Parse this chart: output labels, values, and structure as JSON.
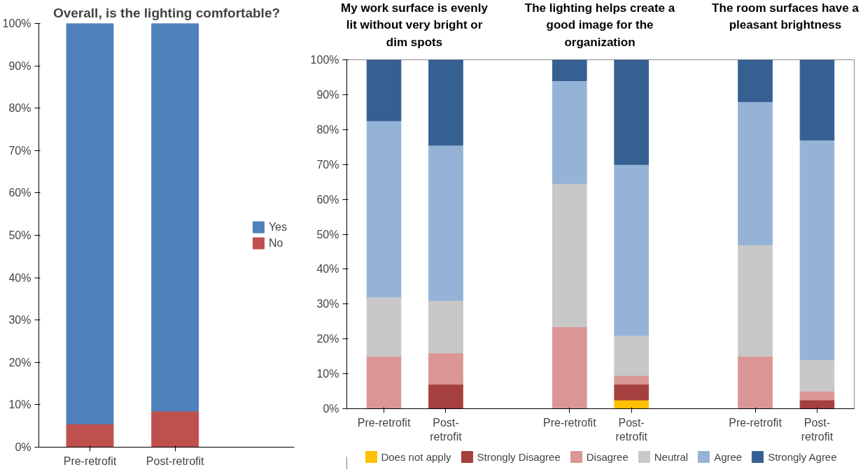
{
  "chart_data": [
    {
      "type": "bar",
      "title": "Overall, is the lighting comfortable?",
      "categories": [
        "Pre-retrofit",
        "Post-retrofit"
      ],
      "stacked": true,
      "legend": "right",
      "grid": false,
      "ylim": [
        0,
        100
      ],
      "yticks": [
        {
          "value": 0,
          "label": "0%"
        },
        {
          "value": 10,
          "label": "10%"
        },
        {
          "value": 20,
          "label": "20%"
        },
        {
          "value": 30,
          "label": "30%"
        },
        {
          "value": 40,
          "label": "40%"
        },
        {
          "value": 50,
          "label": "50%"
        },
        {
          "value": 60,
          "label": "60%"
        },
        {
          "value": 70,
          "label": "70%"
        },
        {
          "value": 80,
          "label": "80%"
        },
        {
          "value": 90,
          "label": "90%"
        },
        {
          "value": 100,
          "label": "100%"
        }
      ],
      "series": [
        {
          "name": "No",
          "color": "#c0504d",
          "values": [
            5.5,
            8.5
          ]
        },
        {
          "name": "Yes",
          "color": "#4f81bd",
          "values": [
            94.5,
            91.5
          ]
        }
      ]
    },
    {
      "type": "bar",
      "title": "My work surface is evenly lit without very bright or dim spots",
      "categories": [
        "Pre-retrofit",
        "Post-retrofit"
      ],
      "stacked": true,
      "legend": "bottom",
      "grid": false,
      "ylim": [
        0,
        100
      ],
      "yticks": [
        {
          "value": 0,
          "label": "0%"
        },
        {
          "value": 10,
          "label": "10%"
        },
        {
          "value": 20,
          "label": "20%"
        },
        {
          "value": 30,
          "label": "30%"
        },
        {
          "value": 40,
          "label": "40%"
        },
        {
          "value": 50,
          "label": "50%"
        },
        {
          "value": 60,
          "label": "60%"
        },
        {
          "value": 70,
          "label": "70%"
        },
        {
          "value": 80,
          "label": "80%"
        },
        {
          "value": 90,
          "label": "90%"
        },
        {
          "value": 100,
          "label": "100%"
        }
      ],
      "series": [
        {
          "name": "Does not apply",
          "color": "#ffc000",
          "values": [
            0,
            0
          ]
        },
        {
          "name": "Strongly Disagree",
          "color": "#a5403e",
          "values": [
            0,
            7
          ]
        },
        {
          "name": "Disagree",
          "color": "#d99694",
          "values": [
            15,
            9
          ]
        },
        {
          "name": "Neutral",
          "color": "#c8c8c8",
          "values": [
            17,
            15
          ]
        },
        {
          "name": "Agree",
          "color": "#95b3d7",
          "values": [
            50.5,
            44.5
          ]
        },
        {
          "name": "Strongly Agree",
          "color": "#366092",
          "values": [
            17.5,
            24.5
          ]
        }
      ]
    },
    {
      "type": "bar",
      "title": "The lighting helps create a good image for the organization",
      "categories": [
        "Pre-retrofit",
        "Post-retrofit"
      ],
      "stacked": true,
      "grid": false,
      "tick_labels": "x",
      "ylim": [
        0,
        100
      ],
      "series": [
        {
          "color": "#ffc000",
          "values": [
            0,
            2.5
          ]
        },
        {
          "color": "#a5403e",
          "values": [
            0,
            4.5
          ]
        },
        {
          "color": "#d99694",
          "values": [
            23.5,
            2.5
          ]
        },
        {
          "color": "#c8c8c8",
          "values": [
            41,
            11.5
          ]
        },
        {
          "color": "#95b3d7",
          "values": [
            29.5,
            49
          ]
        },
        {
          "color": "#366092",
          "values": [
            6,
            30
          ]
        }
      ]
    },
    {
      "type": "bar",
      "title": "The room surfaces have a pleasant brightness",
      "categories": [
        "Pre-retrofit",
        "Post-retrofit"
      ],
      "stacked": true,
      "grid": false,
      "tick_labels": "x",
      "ylim": [
        0,
        100
      ],
      "series": [
        {
          "color": "#ffc000",
          "values": [
            0,
            0
          ]
        },
        {
          "color": "#a5403e",
          "values": [
            0,
            2.5
          ]
        },
        {
          "color": "#d99694",
          "values": [
            15,
            2.5
          ]
        },
        {
          "color": "#c8c8c8",
          "values": [
            32,
            9
          ]
        },
        {
          "color": "#95b3d7",
          "values": [
            41,
            63
          ]
        },
        {
          "color": "#366092",
          "values": [
            12,
            23
          ]
        }
      ]
    }
  ]
}
